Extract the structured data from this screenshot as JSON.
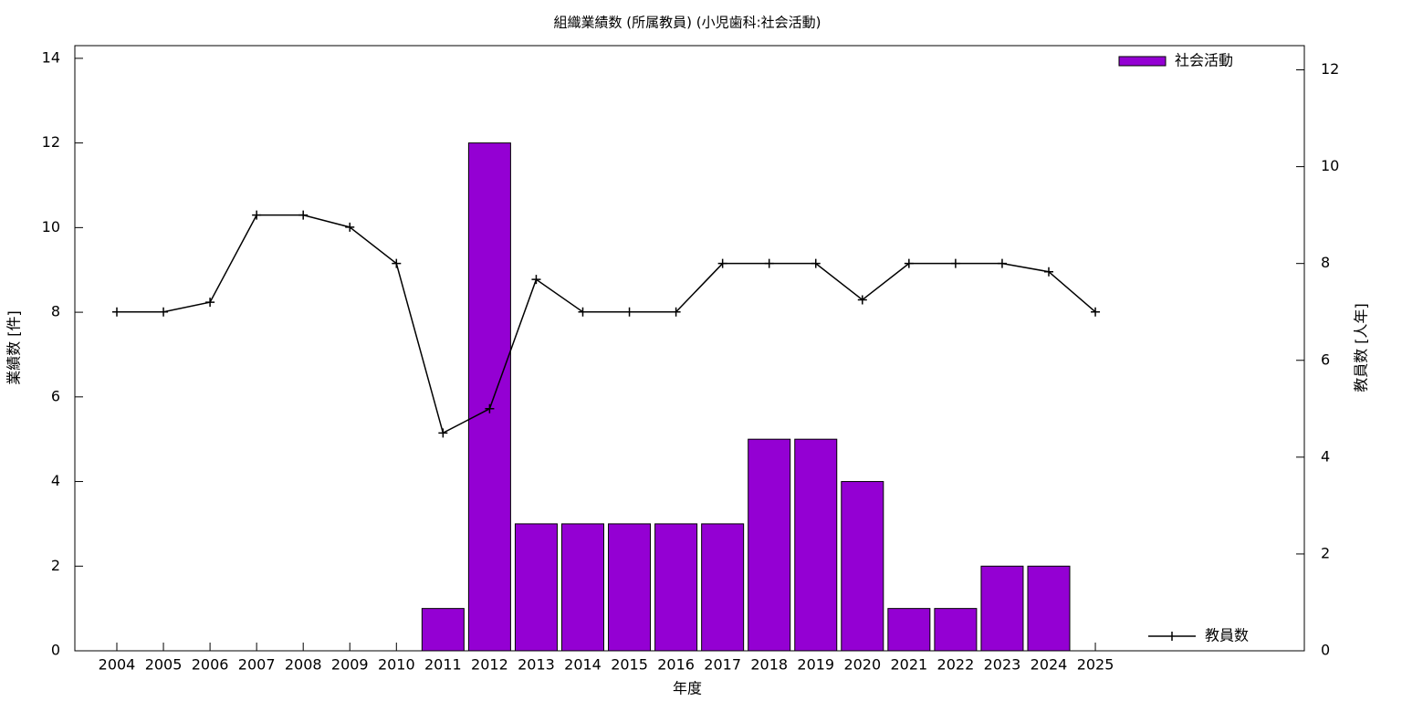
{
  "chart_data": {
    "type": "bar",
    "title": "組織業績数 (所属教員) (小児歯科:社会活動)",
    "x_label": "年度",
    "y_label": "業績数 [件]",
    "y2_label": "教員数 [人年]",
    "categories": [
      "2004",
      "2005",
      "2006",
      "2007",
      "2008",
      "2009",
      "2010",
      "2011",
      "2012",
      "2013",
      "2014",
      "2015",
      "2016",
      "2017",
      "2018",
      "2019",
      "2020",
      "2021",
      "2022",
      "2023",
      "2024",
      "2025"
    ],
    "series": [
      {
        "name": "社会活動",
        "type": "bar",
        "color": "#9400d3",
        "values": [
          0,
          0,
          0,
          0,
          0,
          0,
          0,
          1,
          12,
          3,
          3,
          3,
          3,
          3,
          5,
          5,
          4,
          1,
          1,
          2,
          2,
          0
        ]
      },
      {
        "name": "教員数",
        "type": "line",
        "axis": "y2",
        "color": "#000000",
        "values": [
          7,
          7,
          7.2,
          9,
          9,
          8.75,
          8,
          4.5,
          5,
          7.67,
          7,
          7,
          7,
          8,
          8,
          8,
          7.25,
          8,
          8,
          8,
          7.83,
          7
        ]
      }
    ],
    "ylim": [
      0,
      14.3
    ],
    "yticks": [
      0,
      2,
      4,
      6,
      8,
      10,
      12,
      14
    ],
    "y2lim": [
      0,
      12.5
    ],
    "y2ticks": [
      0,
      2,
      4,
      6,
      8,
      10,
      12
    ],
    "legend": "top-right"
  }
}
